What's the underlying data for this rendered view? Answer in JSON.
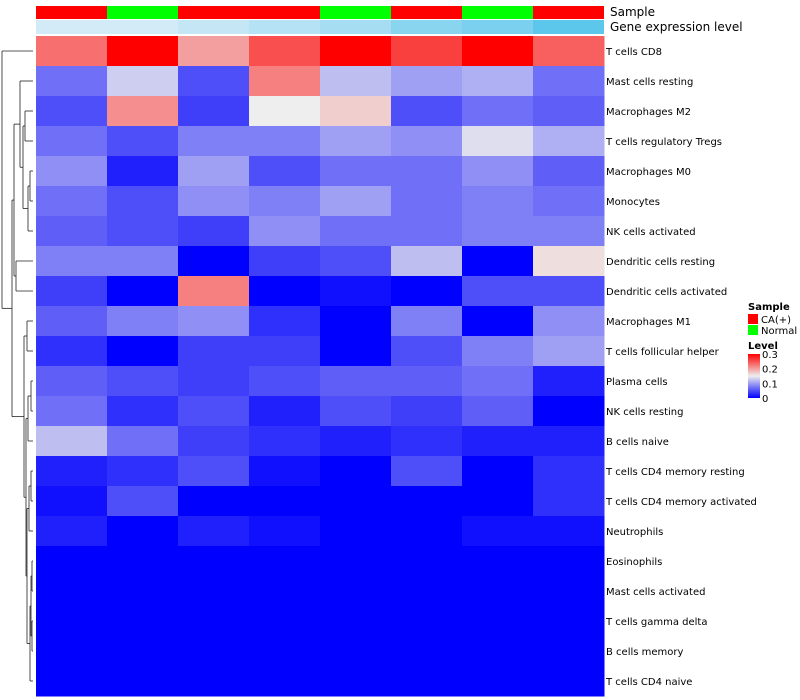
{
  "chart_data": {
    "type": "heatmap",
    "annotation_tracks": [
      "Sample",
      "Gene expression level"
    ],
    "sample_annotation": [
      "CA(+)",
      "Normal",
      "CA(+)",
      "CA(+)",
      "Normal",
      "CA(+)",
      "Normal",
      "CA(+)"
    ],
    "gene_expression_level": [
      0.1,
      0.1,
      0.2,
      0.3,
      0.4,
      0.6,
      0.7,
      0.9
    ],
    "rows": [
      "T cells CD8",
      "Mast cells resting",
      "Macrophages M2",
      "T cells regulatory  Tregs",
      "Macrophages M0",
      "Monocytes",
      "NK cells activated",
      "Dendritic cells resting",
      "Dendritic cells activated",
      "Macrophages M1",
      "T cells follicular helper",
      "Plasma cells",
      "NK cells resting",
      "B cells naive",
      "T cells CD4 memory resting",
      "T cells CD4 memory activated",
      "Neutrophils",
      "Eosinophils",
      "Mast cells activated",
      "T cells gamma delta",
      "B cells memory",
      "T cells CD4 naive"
    ],
    "values": [
      [
        0.23,
        0.3,
        0.2,
        0.25,
        0.3,
        0.26,
        0.3,
        0.24
      ],
      [
        0.07,
        0.13,
        0.05,
        0.22,
        0.12,
        0.1,
        0.11,
        0.07
      ],
      [
        0.05,
        0.21,
        0.04,
        0.15,
        0.17,
        0.05,
        0.07,
        0.06
      ],
      [
        0.07,
        0.05,
        0.08,
        0.08,
        0.1,
        0.09,
        0.14,
        0.11
      ],
      [
        0.09,
        0.02,
        0.1,
        0.05,
        0.07,
        0.07,
        0.09,
        0.06
      ],
      [
        0.07,
        0.05,
        0.09,
        0.08,
        0.1,
        0.07,
        0.08,
        0.07
      ],
      [
        0.06,
        0.05,
        0.04,
        0.09,
        0.07,
        0.07,
        0.08,
        0.08
      ],
      [
        0.08,
        0.08,
        0.0,
        0.04,
        0.05,
        0.12,
        0.0,
        0.16
      ],
      [
        0.04,
        0.0,
        0.22,
        0.0,
        0.01,
        0.0,
        0.05,
        0.05
      ],
      [
        0.06,
        0.08,
        0.09,
        0.03,
        0.0,
        0.08,
        0.0,
        0.09
      ],
      [
        0.03,
        0.0,
        0.04,
        0.04,
        0.0,
        0.05,
        0.08,
        0.1
      ],
      [
        0.06,
        0.05,
        0.04,
        0.05,
        0.06,
        0.06,
        0.07,
        0.02
      ],
      [
        0.07,
        0.03,
        0.05,
        0.02,
        0.05,
        0.04,
        0.06,
        0.0
      ],
      [
        0.12,
        0.07,
        0.04,
        0.03,
        0.02,
        0.03,
        0.02,
        0.02
      ],
      [
        0.02,
        0.03,
        0.05,
        0.01,
        0.0,
        0.05,
        0.0,
        0.03
      ],
      [
        0.01,
        0.05,
        0.0,
        0.0,
        0.0,
        0.0,
        0.0,
        0.03
      ],
      [
        0.02,
        0.0,
        0.02,
        0.01,
        0.0,
        0.0,
        0.01,
        0.01
      ],
      [
        0.0,
        0.0,
        0.0,
        0.0,
        0.0,
        0.0,
        0.0,
        0.0
      ],
      [
        0.0,
        0.0,
        0.0,
        0.0,
        0.0,
        0.0,
        0.0,
        0.0
      ],
      [
        0.0,
        0.0,
        0.0,
        0.0,
        0.0,
        0.0,
        0.0,
        0.0
      ],
      [
        0.0,
        0.0,
        0.0,
        0.0,
        0.0,
        0.0,
        0.0,
        0.0
      ],
      [
        0.0,
        0.0,
        0.0,
        0.0,
        0.0,
        0.0,
        0.0,
        0.0
      ]
    ],
    "row_dendrogram": "left",
    "legend": {
      "position": "right",
      "sample_title": "Sample",
      "sample_entries": [
        {
          "label": "CA(+)",
          "color": "#ff0000"
        },
        {
          "label": "Normal",
          "color": "#00ff00"
        }
      ],
      "level_title": "Level",
      "level_ticks": [
        "0.3",
        "0.2",
        "0.1",
        "0"
      ],
      "level_tick_values": [
        0.3,
        0.2,
        0.1,
        0
      ],
      "range": [
        0,
        0.3
      ]
    },
    "colors": {
      "low": "#0000ff",
      "mid": "#eeeeee",
      "high": "#ff0000",
      "gene_level_low": "#e2eff8",
      "gene_level_high": "#4dc3ea"
    }
  }
}
